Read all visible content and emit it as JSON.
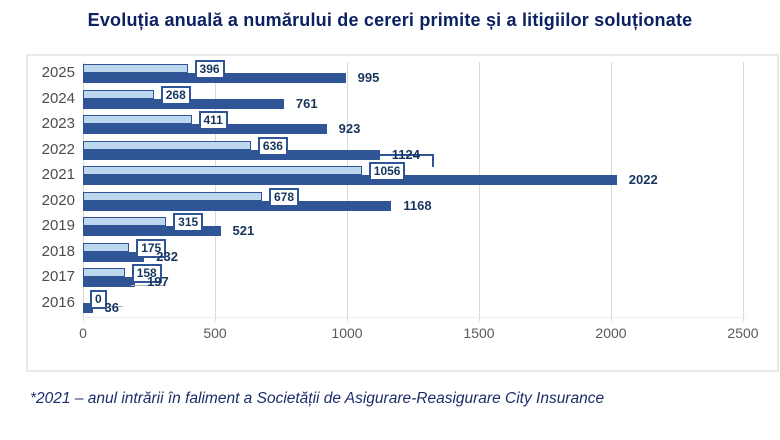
{
  "title": "Evoluția anuală a numărului de cereri primite și a litigiilor soluționate",
  "footnote": "*2021 – anul intrării în faliment a Societății de Asigurare-Reasigurare City Insurance",
  "colors": {
    "title_text": "#0b2161",
    "footnote_text": "#1c2d6b",
    "value_label_text": "#17365d",
    "dark_bar": "#2f5597",
    "light_bar_fill": "#bdd7ee",
    "light_bar_border": "#2f5597",
    "gridline": "#d9d9d9",
    "axis_text": "#595959",
    "year_text": "#4d4d4d"
  },
  "chart_data": {
    "type": "bar",
    "orientation": "horizontal",
    "title": "Evoluția anuală a numărului de cereri primite și a litigiilor soluționate",
    "categories": [
      "2025",
      "2024",
      "2023",
      "2022",
      "2021",
      "2020",
      "2019",
      "2018",
      "2017",
      "2016"
    ],
    "series": [
      {
        "name": "light_blue_series_boxed_labels",
        "color": "#bdd7ee",
        "border_color": "#2f5597",
        "values": [
          396,
          268,
          411,
          636,
          1056,
          678,
          315,
          175,
          158,
          0
        ]
      },
      {
        "name": "dark_blue_series",
        "color": "#2f5597",
        "values": [
          995,
          761,
          923,
          1124,
          2022,
          1168,
          521,
          232,
          197,
          36
        ]
      }
    ],
    "xlim": [
      0,
      2500
    ],
    "x_ticks": [
      "0",
      "500",
      "1000",
      "1500",
      "2000",
      "2500"
    ],
    "grid": "vertical",
    "legend": "none",
    "annotation": "*2021 – anul intrării în faliment a Societății de Asigurare-Reasigurare City Insurance"
  }
}
